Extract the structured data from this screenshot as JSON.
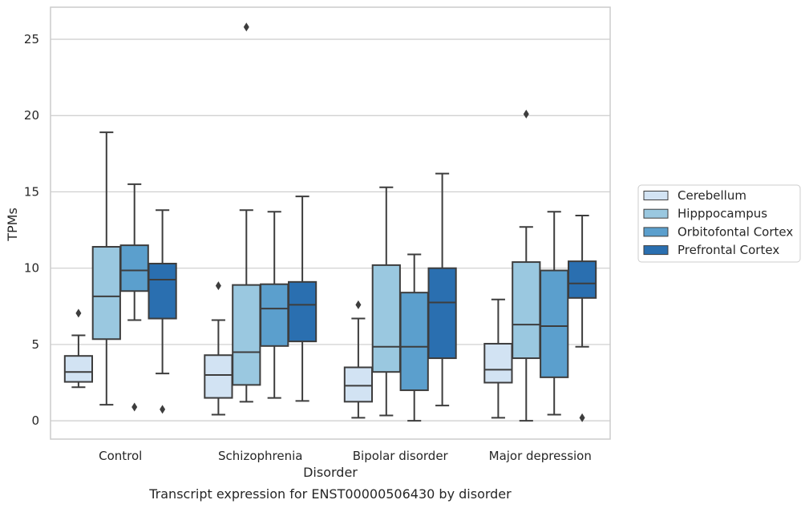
{
  "chart_data": {
    "type": "box",
    "title": "",
    "caption": "Transcript expression for ENST00000506430 by disorder",
    "xlabel": "Disorder",
    "ylabel": "TPMs",
    "ylim": [
      -1.2,
      27.1
    ],
    "yticks": [
      0,
      5,
      10,
      15,
      20,
      25
    ],
    "grid": "horizontal",
    "legend_position": "right",
    "categories": [
      "Control",
      "Schizophrenia",
      "Bipolar disorder",
      "Major depression"
    ],
    "series": [
      {
        "name": "Cerebellum",
        "color": "#d2e3f3",
        "boxes": [
          {
            "whislo": 2.2,
            "q1": 2.55,
            "med": 3.2,
            "q3": 4.25,
            "whishi": 5.6,
            "fliers": [
              7.05
            ]
          },
          {
            "whislo": 0.4,
            "q1": 1.5,
            "med": 3.0,
            "q3": 4.3,
            "whishi": 6.6,
            "fliers": [
              8.85
            ]
          },
          {
            "whislo": 0.2,
            "q1": 1.25,
            "med": 2.3,
            "q3": 3.5,
            "whishi": 6.7,
            "fliers": [
              7.6
            ]
          },
          {
            "whislo": 0.2,
            "q1": 2.5,
            "med": 3.35,
            "q3": 5.05,
            "whishi": 7.95,
            "fliers": []
          }
        ]
      },
      {
        "name": "Hipppocampus",
        "color": "#9ac8e0",
        "boxes": [
          {
            "whislo": 1.05,
            "q1": 5.35,
            "med": 8.15,
            "q3": 11.4,
            "whishi": 18.9,
            "fliers": []
          },
          {
            "whislo": 1.25,
            "q1": 2.35,
            "med": 4.5,
            "q3": 8.9,
            "whishi": 13.8,
            "fliers": [
              25.8
            ]
          },
          {
            "whislo": 0.35,
            "q1": 3.2,
            "med": 4.85,
            "q3": 10.2,
            "whishi": 15.3,
            "fliers": []
          },
          {
            "whislo": 0.0,
            "q1": 4.1,
            "med": 6.3,
            "q3": 10.4,
            "whishi": 12.7,
            "fliers": [
              20.1
            ]
          }
        ]
      },
      {
        "name": "Orbitofontal Cortex",
        "color": "#5b9fcd",
        "boxes": [
          {
            "whislo": 6.6,
            "q1": 8.5,
            "med": 9.85,
            "q3": 11.5,
            "whishi": 15.5,
            "fliers": [
              0.9
            ]
          },
          {
            "whislo": 1.5,
            "q1": 4.9,
            "med": 7.35,
            "q3": 8.95,
            "whishi": 13.7,
            "fliers": []
          },
          {
            "whislo": 0.0,
            "q1": 2.0,
            "med": 4.85,
            "q3": 8.4,
            "whishi": 10.9,
            "fliers": []
          },
          {
            "whislo": 0.4,
            "q1": 2.85,
            "med": 6.2,
            "q3": 9.85,
            "whishi": 13.7,
            "fliers": []
          }
        ]
      },
      {
        "name": "Prefrontal Cortex",
        "color": "#2a6fb0",
        "boxes": [
          {
            "whislo": 3.1,
            "q1": 6.7,
            "med": 9.25,
            "q3": 10.3,
            "whishi": 13.8,
            "fliers": [
              0.75
            ]
          },
          {
            "whislo": 1.3,
            "q1": 5.2,
            "med": 7.6,
            "q3": 9.1,
            "whishi": 14.7,
            "fliers": []
          },
          {
            "whislo": 1.0,
            "q1": 4.1,
            "med": 7.75,
            "q3": 10.0,
            "whishi": 16.2,
            "fliers": []
          },
          {
            "whislo": 4.85,
            "q1": 8.05,
            "med": 9.0,
            "q3": 10.45,
            "whishi": 13.45,
            "fliers": [
              0.2
            ]
          }
        ]
      }
    ]
  }
}
